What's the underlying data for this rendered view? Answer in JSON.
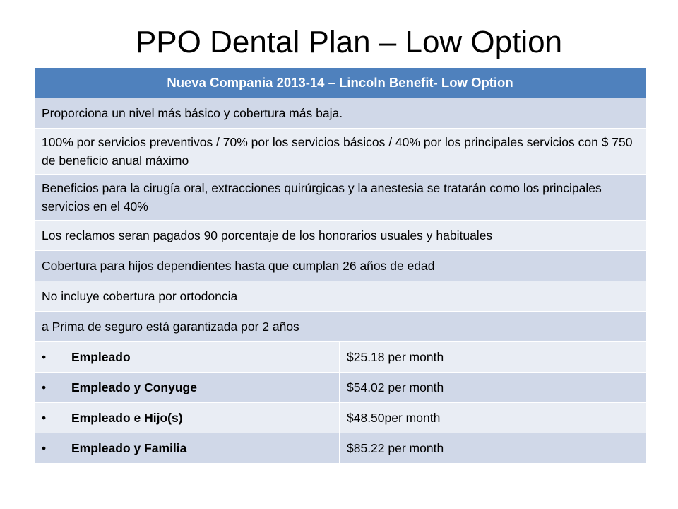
{
  "title": "PPO Dental Plan – Low Option",
  "table": {
    "header": "Nueva Compania 2013-14 – Lincoln Benefit- Low Option",
    "rows": [
      "Proporciona un nivel más básico y cobertura más baja.",
      "100% por servicios preventivos /  70% por los servicios básicos /  40% por los principales servicios con $ 750 de beneficio anual máximo",
      "Beneficios para la cirugía oral, extracciones quirúrgicas y la anestesia se tratarán como los principales servicios en el 40%",
      "Los reclamos seran pagados 90 porcentaje de los honorarios usuales y habituales",
      "Cobertura para hijos dependientes hasta que cumplan 26 años de edad",
      "No incluye cobertura por ortodoncia",
      "a Prima de seguro está garantizada por 2 años"
    ],
    "bullet": "•",
    "premiums": [
      {
        "tier": "Empleado",
        "price": "$25.18 per month"
      },
      {
        "tier": "Empleado y Conyuge",
        "price": "$54.02 per month"
      },
      {
        "tier": "Empleado e Hijo(s)",
        "price": "$48.50per month"
      },
      {
        "tier": "Empleado y Familia",
        "price": "$85.22 per month"
      }
    ]
  }
}
